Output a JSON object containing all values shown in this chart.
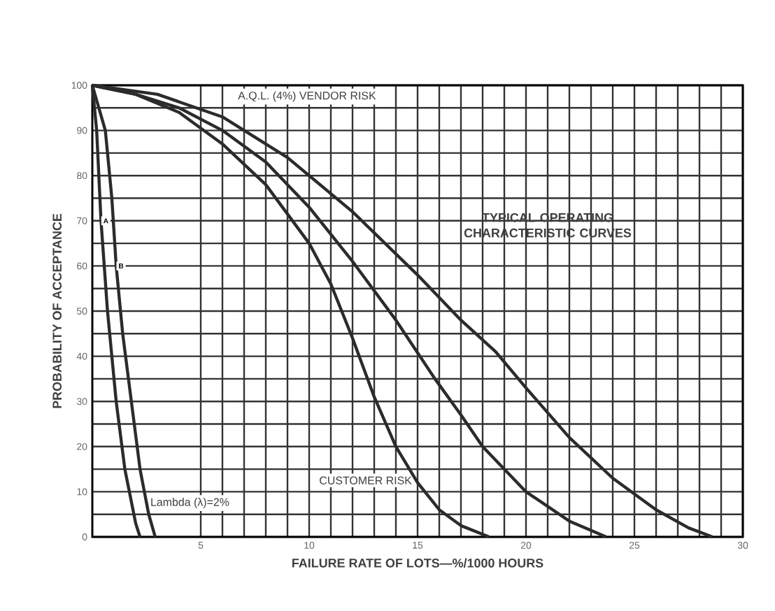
{
  "chart_data": {
    "type": "line",
    "title": "TYPICAL OPERATING CHARACTERISTIC CURVES",
    "xlabel": "FAILURE RATE OF LOTS—%/1000 HOURS",
    "ylabel": "PROBABILITY OF ACCEPTANCE",
    "xlim": [
      0,
      30
    ],
    "ylim": [
      0,
      100
    ],
    "xticks": [
      5,
      10,
      15,
      20,
      25,
      30
    ],
    "yticks": [
      0,
      10,
      20,
      30,
      40,
      50,
      60,
      70,
      80,
      90,
      100
    ],
    "grid": true,
    "marker": "none",
    "line_style": "solid",
    "series": [
      {
        "name": "A",
        "color": "#2b2b2b",
        "x": [
          0,
          0.2,
          0.4,
          0.7,
          1.1,
          1.5,
          2.0,
          2.2
        ],
        "values": [
          100,
          90,
          70,
          50,
          30,
          15,
          3,
          0
        ]
      },
      {
        "name": "B",
        "color": "#2b2b2b",
        "x": [
          0,
          0.6,
          0.9,
          1.1,
          1.4,
          1.8,
          2.2,
          2.6,
          2.9
        ],
        "values": [
          100,
          90,
          75,
          60,
          45,
          30,
          15,
          5,
          0
        ]
      },
      {
        "color": "#2b2b2b",
        "x": [
          0,
          2,
          4,
          6,
          8,
          10,
          11,
          12,
          13,
          14,
          15,
          16,
          17,
          18.3
        ],
        "values": [
          100,
          98,
          94,
          87,
          78,
          65,
          56,
          44,
          31,
          20,
          12,
          6,
          2.5,
          0
        ]
      },
      {
        "color": "#2b2b2b",
        "x": [
          0,
          2,
          4,
          6,
          8,
          10,
          12,
          14,
          15.8,
          17,
          18,
          20,
          22,
          23.7
        ],
        "values": [
          100,
          98,
          95,
          90,
          83,
          73,
          61,
          48,
          35,
          27,
          20,
          10,
          3.5,
          0
        ]
      },
      {
        "color": "#2b2b2b",
        "x": [
          0,
          3,
          6,
          9,
          12,
          15,
          17,
          18.6,
          20,
          22,
          24,
          26,
          27.5,
          28.6
        ],
        "values": [
          100,
          98,
          93,
          84,
          72,
          58,
          48,
          41,
          33,
          22,
          13,
          6,
          2,
          0
        ]
      }
    ],
    "annotations": [
      "A.Q.L. (4%)   VENDOR RISK",
      "CUSTOMER RISK",
      "Lambda (λ)=2%"
    ]
  }
}
